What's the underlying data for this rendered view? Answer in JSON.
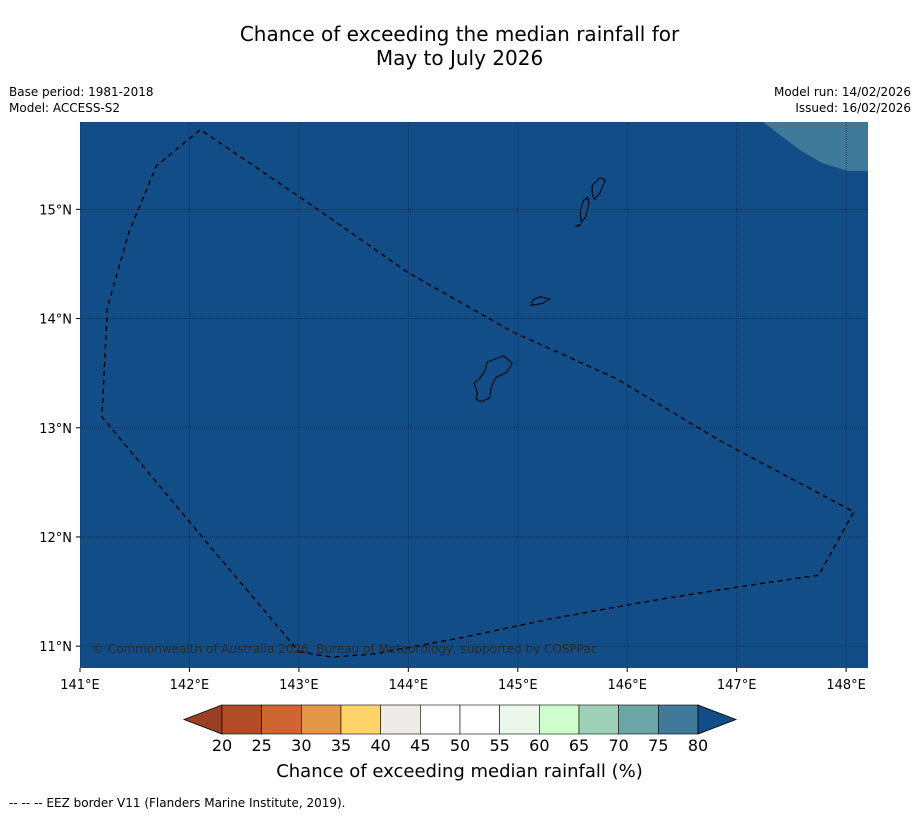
{
  "title": {
    "line1": "Chance of exceeding the median rainfall for",
    "line2": "May to July 2026"
  },
  "meta_left": {
    "base_period": "Base period: 1981-2018",
    "model": "Model: ACCESS-S2"
  },
  "meta_right": {
    "model_run": "Model run: 14/02/2026",
    "issued": "Issued: 16/02/2026"
  },
  "map": {
    "ocean_color": "#134D87",
    "upper_class_color": "#41799B",
    "eez_border_color": "#000000",
    "x_axis": {
      "min": 141.0,
      "max": 148.2,
      "ticks": [
        141,
        142,
        143,
        144,
        145,
        146,
        147,
        148
      ],
      "tick_labels": [
        "141°E",
        "142°E",
        "143°E",
        "144°E",
        "145°E",
        "146°E",
        "147°E",
        "148°E"
      ]
    },
    "y_axis": {
      "min": 10.8,
      "max": 15.8,
      "ticks": [
        11,
        12,
        13,
        14,
        15
      ],
      "tick_labels": [
        "11°N",
        "12°N",
        "13°N",
        "14°N",
        "15°N"
      ]
    },
    "eez_border_lonlat": [
      [
        143.0,
        10.95
      ],
      [
        143.3,
        10.9
      ],
      [
        143.7,
        10.93
      ],
      [
        144.5,
        11.08
      ],
      [
        145.3,
        11.25
      ],
      [
        146.3,
        11.43
      ],
      [
        147.2,
        11.57
      ],
      [
        147.75,
        11.65
      ],
      [
        148.07,
        12.23
      ],
      [
        146.85,
        12.88
      ],
      [
        145.9,
        13.45
      ],
      [
        144.95,
        13.88
      ],
      [
        144.0,
        14.42
      ],
      [
        143.1,
        15.05
      ],
      [
        142.1,
        15.73
      ],
      [
        141.7,
        15.4
      ],
      [
        141.45,
        14.8
      ],
      [
        141.25,
        14.1
      ],
      [
        141.2,
        13.1
      ],
      [
        142.2,
        11.9
      ],
      [
        143.0,
        10.95
      ]
    ],
    "islands": [
      {
        "name": "Guam",
        "lonlat": [
          [
            144.72,
            13.6
          ],
          [
            144.87,
            13.66
          ],
          [
            144.95,
            13.59
          ],
          [
            144.9,
            13.51
          ],
          [
            144.8,
            13.46
          ],
          [
            144.76,
            13.38
          ],
          [
            144.74,
            13.27
          ],
          [
            144.67,
            13.24
          ],
          [
            144.62,
            13.26
          ],
          [
            144.63,
            13.32
          ],
          [
            144.6,
            13.41
          ],
          [
            144.65,
            13.45
          ],
          [
            144.7,
            13.52
          ],
          [
            144.72,
            13.6
          ]
        ]
      },
      {
        "name": "Rota",
        "lonlat": [
          [
            145.12,
            14.12
          ],
          [
            145.23,
            14.14
          ],
          [
            145.29,
            14.18
          ],
          [
            145.2,
            14.2
          ],
          [
            145.14,
            14.17
          ],
          [
            145.12,
            14.12
          ]
        ]
      },
      {
        "name": "Tinian",
        "lonlat": [
          [
            145.58,
            14.88
          ],
          [
            145.62,
            14.93
          ],
          [
            145.65,
            15.05
          ],
          [
            145.64,
            15.11
          ],
          [
            145.6,
            15.08
          ],
          [
            145.57,
            14.98
          ],
          [
            145.58,
            14.88
          ]
        ]
      },
      {
        "name": "Saipan",
        "lonlat": [
          [
            145.7,
            15.09
          ],
          [
            145.75,
            15.15
          ],
          [
            145.8,
            15.27
          ],
          [
            145.75,
            15.29
          ],
          [
            145.68,
            15.22
          ],
          [
            145.68,
            15.15
          ],
          [
            145.7,
            15.09
          ]
        ]
      },
      {
        "name": "Aguijan",
        "lonlat": [
          [
            145.53,
            14.85
          ],
          [
            145.57,
            14.86
          ],
          [
            145.55,
            14.84
          ],
          [
            145.53,
            14.85
          ]
        ]
      }
    ],
    "copyright": "© Commonwealth of Australia 2026, Bureau of Meteorology, supported by COSPPac"
  },
  "colorbar": {
    "label": "Chance of exceeding median rainfall (%)",
    "tick_labels": [
      "20",
      "25",
      "30",
      "35",
      "40",
      "45",
      "50",
      "55",
      "60",
      "65",
      "70",
      "75",
      "80"
    ],
    "under_color": "#9A3F24",
    "over_color": "#134D87",
    "class_colors": [
      "#B24C27",
      "#CF6632",
      "#E39746",
      "#FED46A",
      "#EEEBE6",
      "#FFFFFF",
      "#FFFFFF",
      "#EBF7EA",
      "#CCFFCC",
      "#9DD0B7",
      "#6BA5A5",
      "#41799B"
    ]
  },
  "footer": "--  --  -- EEZ border V11 (Flanders Marine Institute, 2019)."
}
